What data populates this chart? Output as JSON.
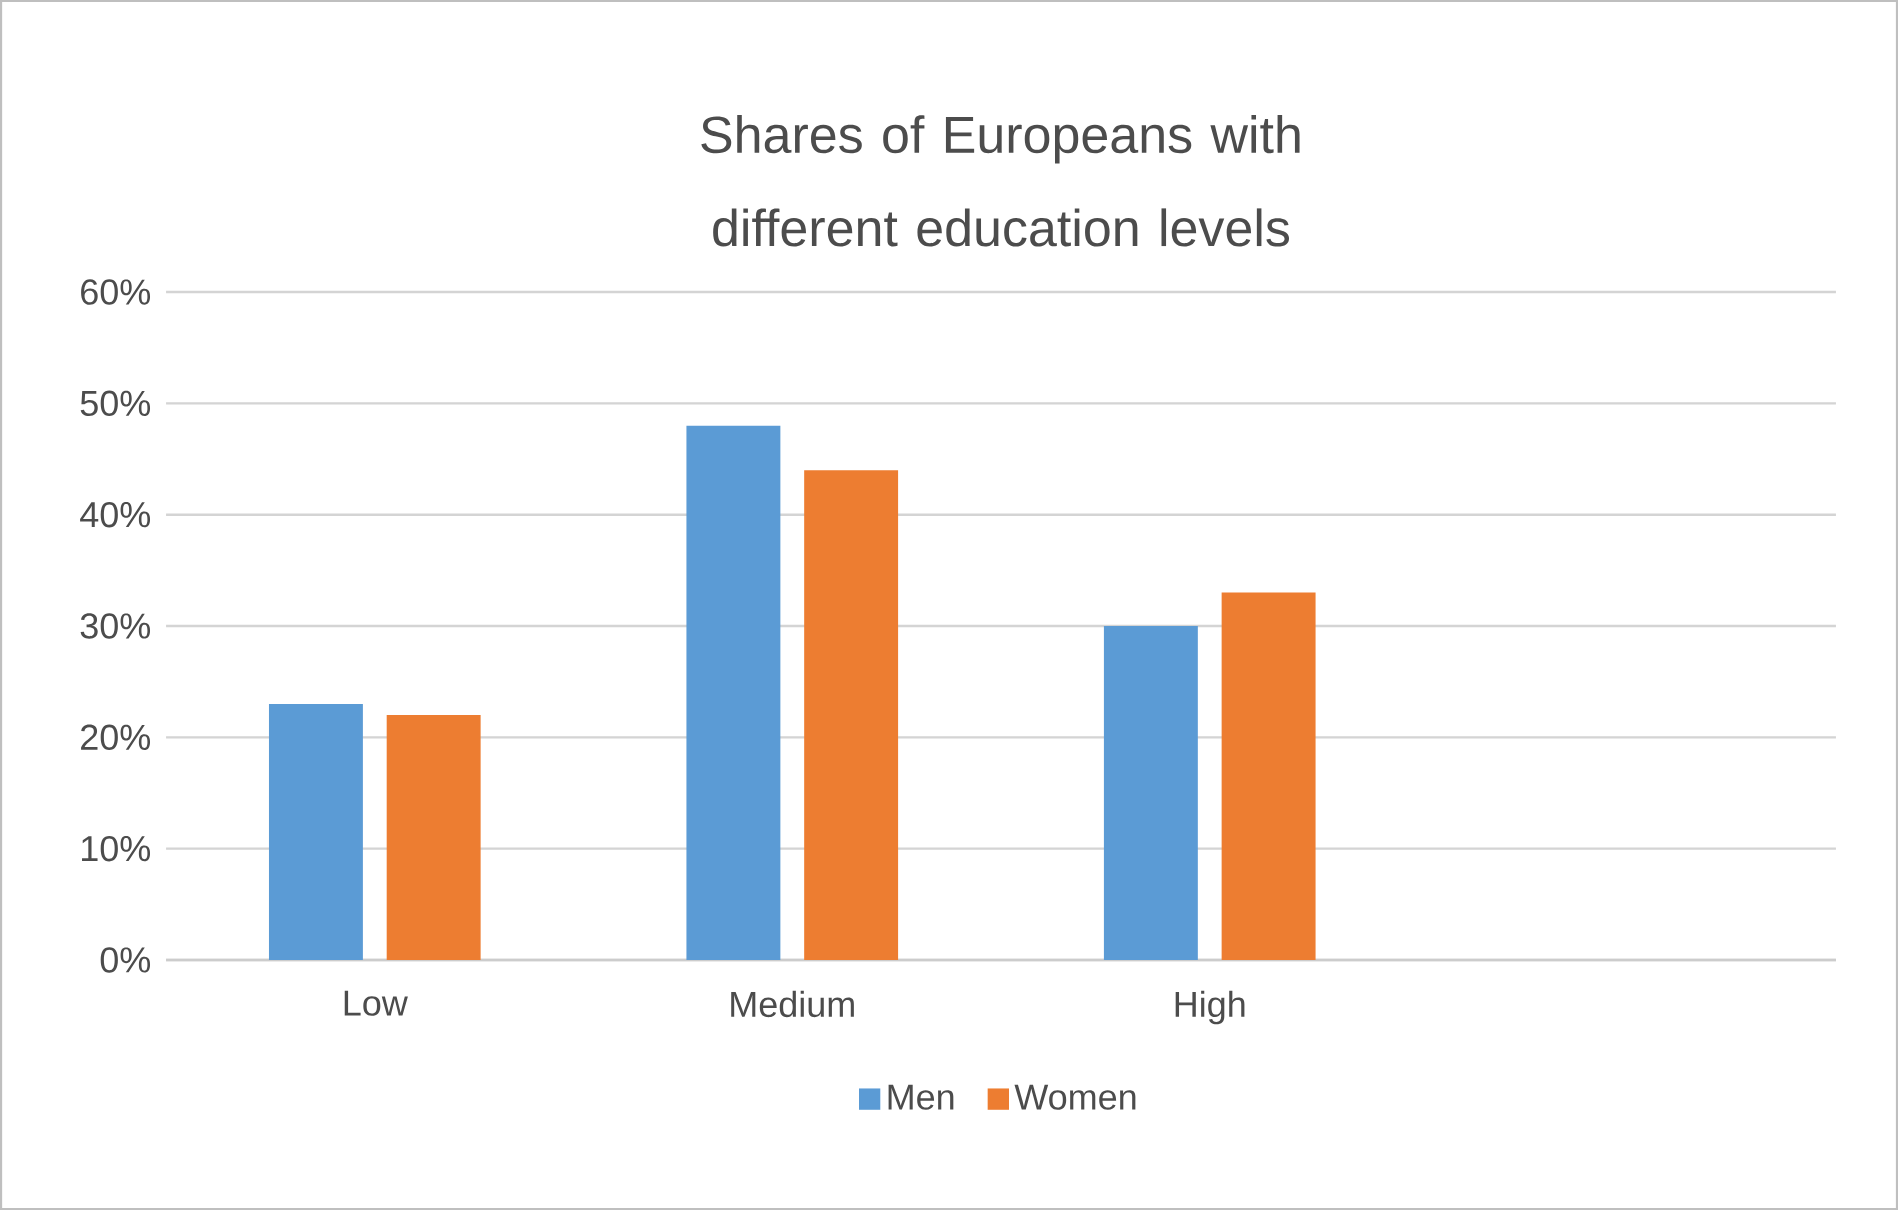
{
  "chart_data": {
    "type": "bar",
    "title": "Shares of Europeans with different education levels",
    "categories": [
      "Low",
      "Medium",
      "High",
      null
    ],
    "series": [
      {
        "name": "Men",
        "color": "#5b9bd5",
        "values": [
          23,
          48,
          30,
          null
        ]
      },
      {
        "name": "Women",
        "color": "#ed7d31",
        "values": [
          22,
          44,
          33,
          null
        ]
      }
    ],
    "ylim": [
      0,
      60
    ],
    "yticks": [
      {
        "value": 0,
        "label": "0%"
      },
      {
        "value": 10,
        "label": "10%"
      },
      {
        "value": 20,
        "label": "20%"
      },
      {
        "value": 30,
        "label": "30%"
      },
      {
        "value": 40,
        "label": "40%"
      },
      {
        "value": 50,
        "label": "50%"
      },
      {
        "value": 60,
        "label": "60%"
      }
    ],
    "grid": "y",
    "legend": "bottom"
  }
}
